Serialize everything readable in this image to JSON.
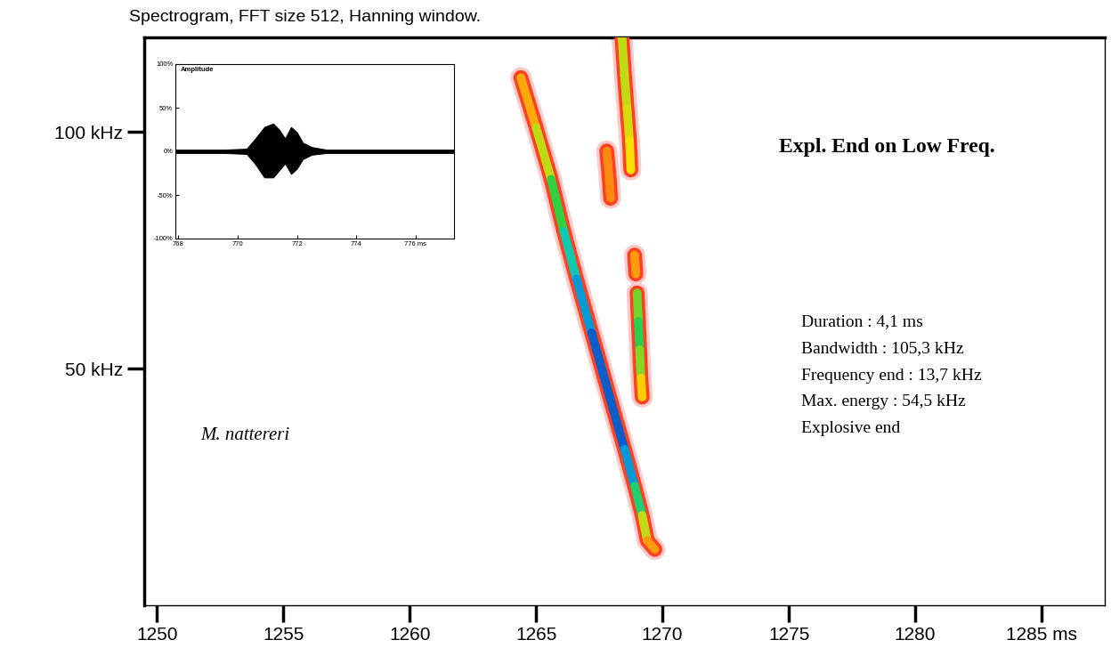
{
  "chart_data": {
    "type": "spectrogram",
    "title": "Spectrogram, FFT size 512, Hanning window.",
    "xlim": [
      1249.5,
      1287.5
    ],
    "xticks": [
      1250,
      1255,
      1260,
      1265,
      1270,
      1275,
      1280,
      {
        "value": 1285,
        "label": "1285 ms"
      }
    ],
    "ylim": [
      0,
      120
    ],
    "yticks": [
      {
        "value": 50,
        "label": "50 kHz"
      },
      {
        "value": 100,
        "label": "100 kHz"
      }
    ],
    "series": [
      {
        "type": "line",
        "x": [
          1264.4,
          1265.0,
          1265.6,
          1266.1,
          1266.6,
          1267.2,
          1267.6,
          1268.0,
          1268.5,
          1268.9,
          1269.2,
          1269.4,
          1269.7
        ],
        "values": [
          111.5,
          101,
          90,
          79,
          69,
          57.6,
          50,
          42.4,
          33,
          25.2,
          19,
          13.7,
          11.8
        ],
        "intensity": [
          0.1,
          0.25,
          0.4,
          0.6,
          0.75,
          0.9,
          0.95,
          0.9,
          0.95,
          0.7,
          0.45,
          0.2,
          0.1
        ]
      },
      {
        "type": "line",
        "x": [
          1268.4,
          1268.5,
          1268.6,
          1268.7,
          1268.75,
          null,
          1268.9,
          1268.95,
          null,
          1269.0,
          1269.05,
          1269.1,
          1269.15,
          1269.2
        ],
        "values": [
          120,
          112,
          105,
          98,
          92,
          null,
          74,
          70,
          null,
          66,
          60,
          54,
          48,
          44
        ],
        "intensity": [
          0.3,
          0.35,
          0.3,
          0.3,
          0.2,
          null,
          0.15,
          0.15,
          null,
          0.3,
          0.55,
          0.5,
          0.3,
          0.15
        ]
      },
      {
        "type": "line",
        "x": [
          1267.8,
          1267.9,
          1267.95
        ],
        "values": [
          96,
          90,
          86
        ],
        "intensity": [
          0.1,
          0.15,
          0.1
        ]
      }
    ],
    "heading": "Expl. End on Low Freq.",
    "annotations": [
      "Duration : 4,1 ms",
      "Bandwidth : 105,3 kHz",
      "Frequency end : 13,7 kHz",
      "Max. energy : 54,5 kHz",
      "Explosive end"
    ],
    "species": "M. nattereri",
    "inset": {
      "type": "area",
      "ylabel": "Amplitude",
      "xlim": [
        767.9,
        777.3
      ],
      "xticks": [
        768,
        770,
        772,
        774,
        {
          "value": 776,
          "label": "776 ms"
        }
      ],
      "ylim": [
        -100,
        100
      ],
      "yticks": [
        {
          "value": 100,
          "label": "100%"
        },
        {
          "value": 50,
          "label": "50%"
        },
        {
          "value": 0,
          "label": "0%"
        },
        {
          "value": -50,
          "label": "-50%"
        },
        {
          "value": -100,
          "label": "-100%"
        }
      ],
      "x": [
        767.9,
        769.5,
        770.3,
        770.6,
        770.9,
        771.2,
        771.4,
        771.6,
        771.8,
        772.0,
        772.2,
        772.5,
        773.0,
        777.3
      ],
      "upper": [
        2,
        2,
        3,
        15,
        28,
        32,
        25,
        15,
        28,
        22,
        10,
        5,
        2,
        2
      ],
      "lower": [
        -2,
        -2,
        -3,
        -15,
        -30,
        -30,
        -22,
        -14,
        -26,
        -20,
        -9,
        -4,
        -2,
        -2
      ]
    }
  }
}
